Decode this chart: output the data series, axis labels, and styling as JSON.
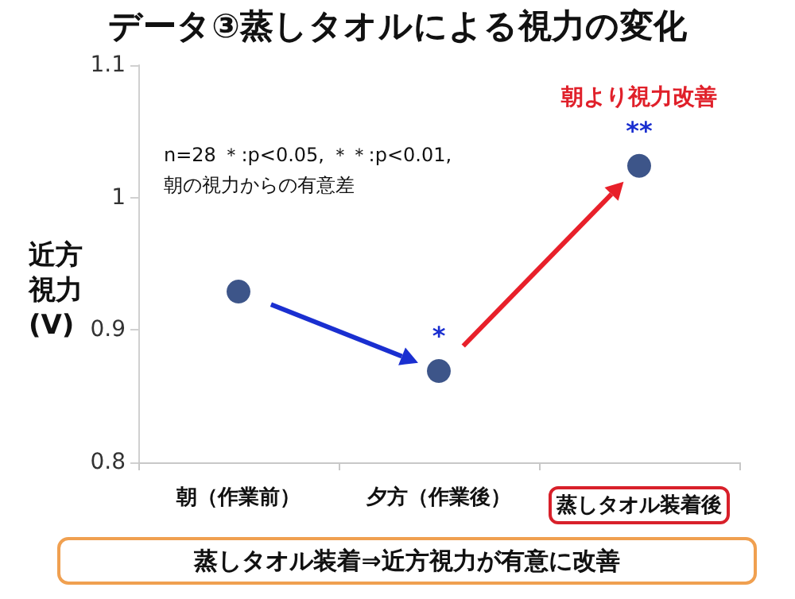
{
  "chart_data": {
    "type": "scatter",
    "title": "データ③蒸しタオルによる視力の変化",
    "ylabel": "近方視力(V)",
    "categories": [
      "朝（作業前）",
      "夕方（作業後）",
      "蒸しタオル装着後"
    ],
    "series": [
      {
        "color": "#0d2a6b",
        "values": [
          0.929,
          0.869,
          1.024
        ]
      }
    ],
    "ylim": [
      0.8,
      1.1
    ],
    "yticks": [
      0.8,
      0.9,
      {
        "value": 1,
        "label": "1"
      },
      1.1
    ],
    "grid": false,
    "marker": "circle",
    "annotations": [
      "n=28 ＊:p<0.05, ＊＊:p<0.01,\n朝の視力からの有意差",
      "蒸しタオル装着⇒近方視力が有意に改善",
      {
        "text": "*",
        "x": "夕方（作業後）",
        "y": 0.869
      },
      {
        "text": "**",
        "x": "蒸しタオル装着後",
        "y": 1.024
      },
      {
        "text": "朝より視力改善",
        "x": "蒸しタオル装着後",
        "y": 1.024
      }
    ]
  }
}
